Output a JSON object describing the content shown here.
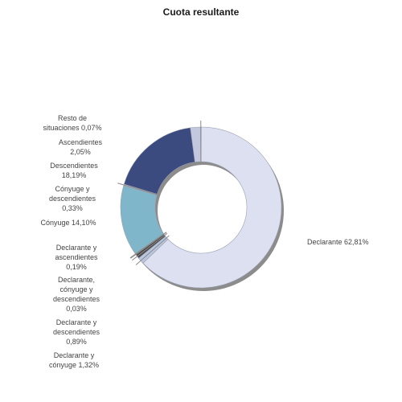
{
  "chart_data": {
    "type": "pie",
    "subtype": "donut",
    "title": "Cuota resultante",
    "slices": [
      {
        "label": "Declarante",
        "value": 62.81,
        "display": "Declarante 62,81%",
        "color": "#dde0f0"
      },
      {
        "label": "Declarante y cónyuge",
        "value": 1.32,
        "display": "Declarante y\ncónyuge 1,32%",
        "color": "#b9c6e0"
      },
      {
        "label": "Declarante y descendientes",
        "value": 0.89,
        "display": "Declarante y\ndescendientes\n0,89%",
        "color": "#4a4a4a"
      },
      {
        "label": "Declarante, cónyuge y descendientes",
        "value": 0.03,
        "display": "Declarante,\ncónyuge y\ndescendientes\n0,03%",
        "color": "#6e6e6e"
      },
      {
        "label": "Declarante y ascendientes",
        "value": 0.19,
        "display": "Declarante y\nascendientes\n0,19%",
        "color": "#9aa9c9"
      },
      {
        "label": "Cónyuge",
        "value": 14.1,
        "display": "Cónyuge 14,10%",
        "color": "#7fb6c9"
      },
      {
        "label": "Cónyuge y descendientes",
        "value": 0.33,
        "display": "Cónyuge y\ndescendientes\n0,33%",
        "color": "#c8d9e6"
      },
      {
        "label": "Descendientes",
        "value": 18.19,
        "display": "Descendientes\n18,19%",
        "color": "#3b4b7f"
      },
      {
        "label": "Ascendientes",
        "value": 2.05,
        "display": "Ascendientes\n2,05%",
        "color": "#c3c8df"
      },
      {
        "label": "Resto de situaciones",
        "value": 0.07,
        "display": "Resto de\nsituaciones 0,07%",
        "color": "#8a8a8a"
      }
    ],
    "start_angle_deg": 0,
    "direction": "clockwise",
    "legend": "none"
  }
}
